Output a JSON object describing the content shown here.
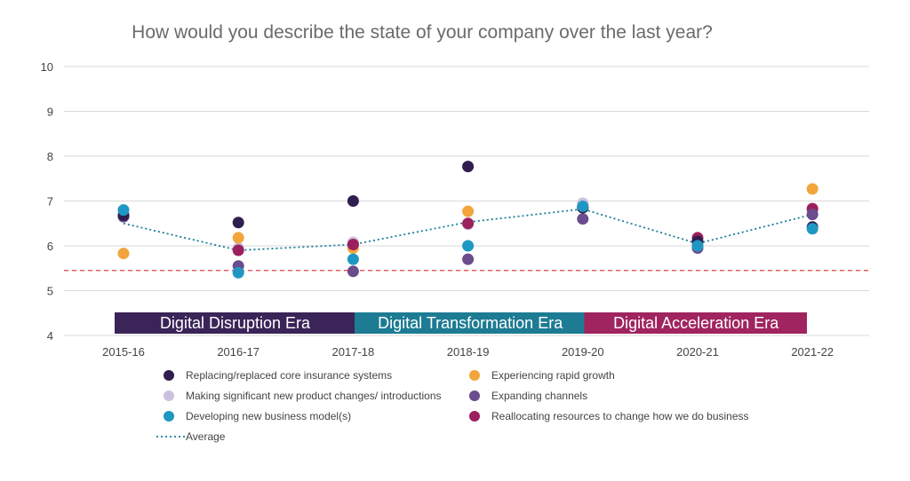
{
  "chart_data": {
    "type": "scatter",
    "title": "How would you describe the state of your company over the last year?",
    "categories": [
      "2015-16",
      "2016-17",
      "2017-18",
      "2018-19",
      "2019-20",
      "2020-21",
      "2021-22"
    ],
    "ylim": [
      4,
      10
    ],
    "yticks": [
      4,
      5,
      6,
      7,
      8,
      9,
      10
    ],
    "grid": true,
    "reference_line": {
      "value": 5.45,
      "color": "#e03c3c",
      "style": "dashed"
    },
    "series": [
      {
        "name": "Replacing/replaced core insurance systems",
        "color": "#2f1e4f",
        "values": [
          6.68,
          6.52,
          7.0,
          7.77,
          6.85,
          6.1,
          6.42
        ]
      },
      {
        "name": "Experiencing rapid growth",
        "color": "#f2a53b",
        "values": [
          5.83,
          6.18,
          5.95,
          6.77,
          6.85,
          6.05,
          7.27
        ]
      },
      {
        "name": "Making significant new product changes/ introductions",
        "color": "#c9c1de",
        "values": [
          6.65,
          5.95,
          6.08,
          6.48,
          6.95,
          6.05,
          6.78
        ]
      },
      {
        "name": "Expanding channels",
        "color": "#6b4c8c",
        "values": [
          6.65,
          5.55,
          5.43,
          5.7,
          6.6,
          5.95,
          6.7
        ]
      },
      {
        "name": "Developing new business model(s)",
        "color": "#1f97c3",
        "values": [
          6.8,
          5.4,
          5.7,
          6.0,
          6.88,
          6.0,
          6.38
        ]
      },
      {
        "name": "Reallocating resources to change how we do business",
        "color": "#9c1f5e",
        "values": [
          6.68,
          5.9,
          6.03,
          6.5,
          6.87,
          6.18,
          6.83
        ]
      }
    ],
    "average": {
      "name": "Average",
      "color": "#1a7c96",
      "style": "dotted",
      "values": [
        6.5,
        5.9,
        6.03,
        6.53,
        6.82,
        6.05,
        6.7
      ]
    },
    "eras": [
      {
        "label": "Digital Disruption Era",
        "from": "2015-16",
        "to": "2017-18",
        "color": "#3a2458"
      },
      {
        "label": "Digital Transformation Era",
        "from": "2017-18",
        "to": "2019-20",
        "color": "#1d7b93"
      },
      {
        "label": "Digital Acceleration Era",
        "from": "2019-20",
        "to": "2021-22",
        "color": "#a0245f"
      }
    ]
  }
}
